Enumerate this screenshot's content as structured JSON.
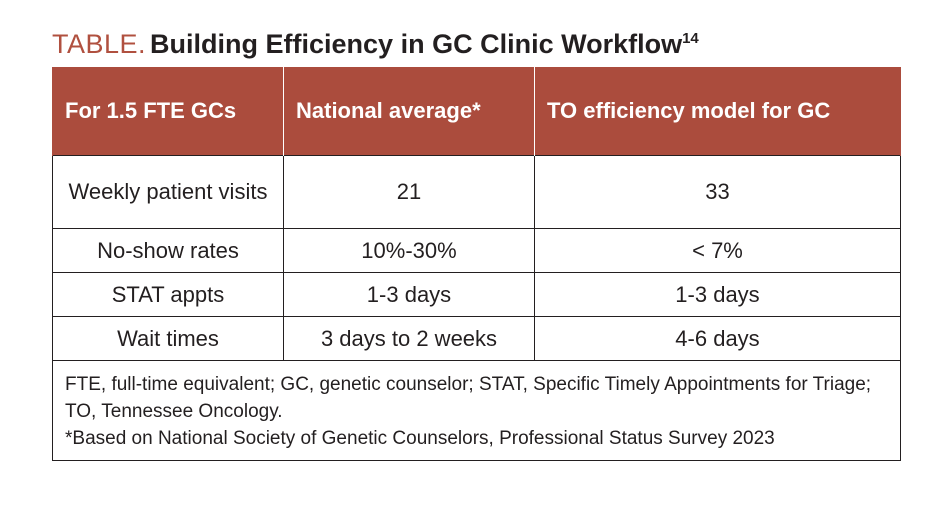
{
  "title": {
    "prefix": "TABLE.",
    "main": "Building Efficiency in GC Clinic Workflow",
    "superscript": "14"
  },
  "table": {
    "headers": [
      "For 1.5 FTE GCs",
      "National average*",
      "TO efficiency model for GC"
    ],
    "rows": [
      {
        "label": "Weekly patient visits",
        "national": "21",
        "to_model": "33"
      },
      {
        "label": "No-show rates",
        "national": "10%-30%",
        "to_model": "< 7%"
      },
      {
        "label": "STAT appts",
        "national": "1-3 days",
        "to_model": "1-3 days"
      },
      {
        "label": "Wait times",
        "national": "3 days to 2 weeks",
        "to_model": "4-6 days"
      }
    ],
    "footnotes": {
      "abbreviations": "FTE, full-time equivalent; GC, genetic counselor; STAT, Specific Timely Appointments for Triage; TO, Tennessee Oncology.",
      "source": "*Based on National Society of Genetic Counselors, Professional Status Survey 2023"
    }
  },
  "colors": {
    "header_bg": "#ab4c3d",
    "title_prefix": "#b0503f",
    "text": "#231f20"
  }
}
